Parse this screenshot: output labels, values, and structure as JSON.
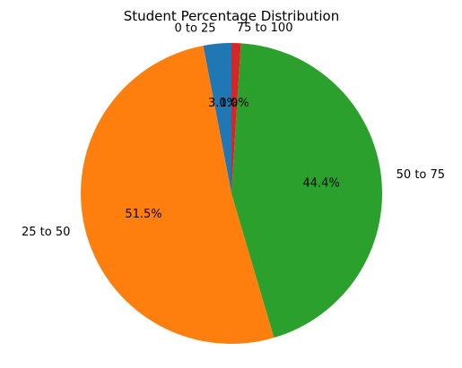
{
  "chart_data": {
    "type": "pie",
    "title": "Student Percentage Distribution",
    "categories": [
      "0 to 25",
      "25 to 50",
      "50 to 75",
      "75 to 100"
    ],
    "values": [
      3.0,
      51.5,
      44.4,
      1.0
    ],
    "value_labels": [
      "3.0%",
      "51.5%",
      "44.4%",
      "1.0%"
    ],
    "colors": [
      "#1f77b4",
      "#ff7f0e",
      "#2ca02c",
      "#d62728"
    ],
    "start_angle_deg": 90,
    "direction": "counterclockwise"
  }
}
